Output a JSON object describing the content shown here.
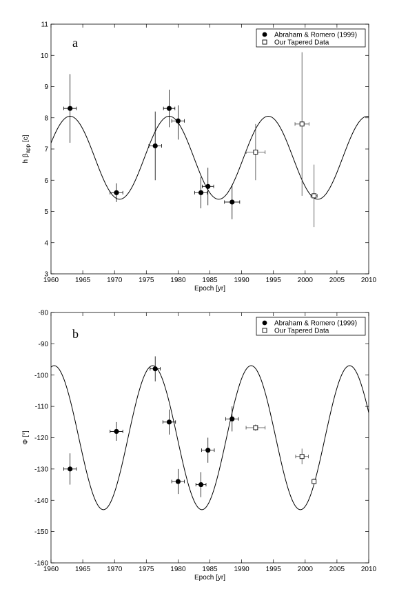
{
  "chart_data": [
    {
      "type": "scatter",
      "panel_label": "a",
      "xlabel": "Epoch [yr]",
      "ylabel_main": "h β",
      "ylabel_sub": "app",
      "ylabel_unit": "[c]",
      "xlim": [
        1960,
        2010
      ],
      "ylim": [
        3,
        11
      ],
      "xticks": [
        1960,
        1965,
        1970,
        1975,
        1980,
        1985,
        1990,
        1995,
        2000,
        2005,
        2010
      ],
      "yticks": [
        3,
        4,
        5,
        6,
        7,
        8,
        9,
        10,
        11
      ],
      "legend_position": "top-right",
      "model_curve": {
        "center": 6.72,
        "amplitude": 1.33,
        "period": 15.6,
        "peak_epoch": 1963.0
      },
      "series": [
        {
          "name": "Abraham & Romero (1999)",
          "marker": "filled-circle",
          "points": [
            {
              "x": 1963.0,
              "y": 8.3,
              "xerr": 1.0,
              "yerr_low": 1.1,
              "yerr_high": 1.1
            },
            {
              "x": 1970.3,
              "y": 5.6,
              "xerr": 1.0,
              "yerr_low": 0.3,
              "yerr_high": 0.3
            },
            {
              "x": 1976.4,
              "y": 7.1,
              "xerr": 1.0,
              "yerr_low": 1.1,
              "yerr_high": 1.1
            },
            {
              "x": 1978.6,
              "y": 8.3,
              "xerr": 0.9,
              "yerr_low": 0.6,
              "yerr_high": 0.6
            },
            {
              "x": 1980.0,
              "y": 7.9,
              "xerr": 1.0,
              "yerr_low": 0.6,
              "yerr_high": 0.5
            },
            {
              "x": 1983.6,
              "y": 5.6,
              "xerr": 1.0,
              "yerr_low": 0.5,
              "yerr_high": 0.5
            },
            {
              "x": 1984.7,
              "y": 5.8,
              "xerr": 0.9,
              "yerr_low": 0.6,
              "yerr_high": 0.6
            },
            {
              "x": 1988.5,
              "y": 5.3,
              "xerr": 1.2,
              "yerr_low": 0.55,
              "yerr_high": 0.55
            }
          ]
        },
        {
          "name": "Our Tapered Data",
          "marker": "open-square",
          "points": [
            {
              "x": 1992.2,
              "y": 6.9,
              "xerr": 1.5,
              "yerr_low": 0.9,
              "yerr_high": 0.9
            },
            {
              "x": 1999.5,
              "y": 7.8,
              "xerr": 1.1,
              "yerr_low": 2.3,
              "yerr_high": 2.3
            },
            {
              "x": 2001.4,
              "y": 5.5,
              "xerr": 0.5,
              "yerr_low": 1.0,
              "yerr_high": 1.0
            }
          ]
        }
      ]
    },
    {
      "type": "scatter",
      "panel_label": "b",
      "xlabel": "Epoch [yr]",
      "ylabel_main": "Φ",
      "ylabel_sub": "",
      "ylabel_unit": "[°]",
      "xlim": [
        1960,
        2010
      ],
      "ylim": [
        -160,
        -80
      ],
      "xticks": [
        1960,
        1965,
        1970,
        1975,
        1980,
        1985,
        1990,
        1995,
        2000,
        2005,
        2010
      ],
      "yticks": [
        -160,
        -150,
        -140,
        -130,
        -120,
        -110,
        -100,
        -90,
        -80
      ],
      "legend_position": "top-right",
      "model_curve": {
        "center": -120.0,
        "amplitude": 23.0,
        "period": 15.5,
        "peak_epoch": 1976.0
      },
      "series": [
        {
          "name": "Abraham & Romero (1999)",
          "marker": "filled-circle",
          "points": [
            {
              "x": 1963.0,
              "y": -130,
              "xerr": 1.0,
              "yerr_low": 5,
              "yerr_high": 5
            },
            {
              "x": 1970.3,
              "y": -118,
              "xerr": 1.0,
              "yerr_low": 3,
              "yerr_high": 3
            },
            {
              "x": 1976.4,
              "y": -98,
              "xerr": 0.8,
              "yerr_low": 4,
              "yerr_high": 4
            },
            {
              "x": 1978.6,
              "y": -115,
              "xerr": 1.0,
              "yerr_low": 4,
              "yerr_high": 4
            },
            {
              "x": 1980.0,
              "y": -134,
              "xerr": 1.0,
              "yerr_low": 4,
              "yerr_high": 4
            },
            {
              "x": 1983.6,
              "y": -135,
              "xerr": 0.8,
              "yerr_low": 4,
              "yerr_high": 4
            },
            {
              "x": 1984.7,
              "y": -124,
              "xerr": 1.0,
              "yerr_low": 4,
              "yerr_high": 4
            },
            {
              "x": 1988.5,
              "y": -114,
              "xerr": 1.0,
              "yerr_low": 4,
              "yerr_high": 4
            }
          ]
        },
        {
          "name": "Our Tapered Data",
          "marker": "open-square",
          "points": [
            {
              "x": 1992.2,
              "y": -116.8,
              "xerr": 1.5,
              "yerr_low": 1.0,
              "yerr_high": 1.0
            },
            {
              "x": 1999.5,
              "y": -126,
              "xerr": 1.0,
              "yerr_low": 2.5,
              "yerr_high": 2.5
            },
            {
              "x": 2001.4,
              "y": -134,
              "xerr": 0.3,
              "yerr_low": 1.0,
              "yerr_high": 1.0
            }
          ]
        }
      ]
    }
  ]
}
